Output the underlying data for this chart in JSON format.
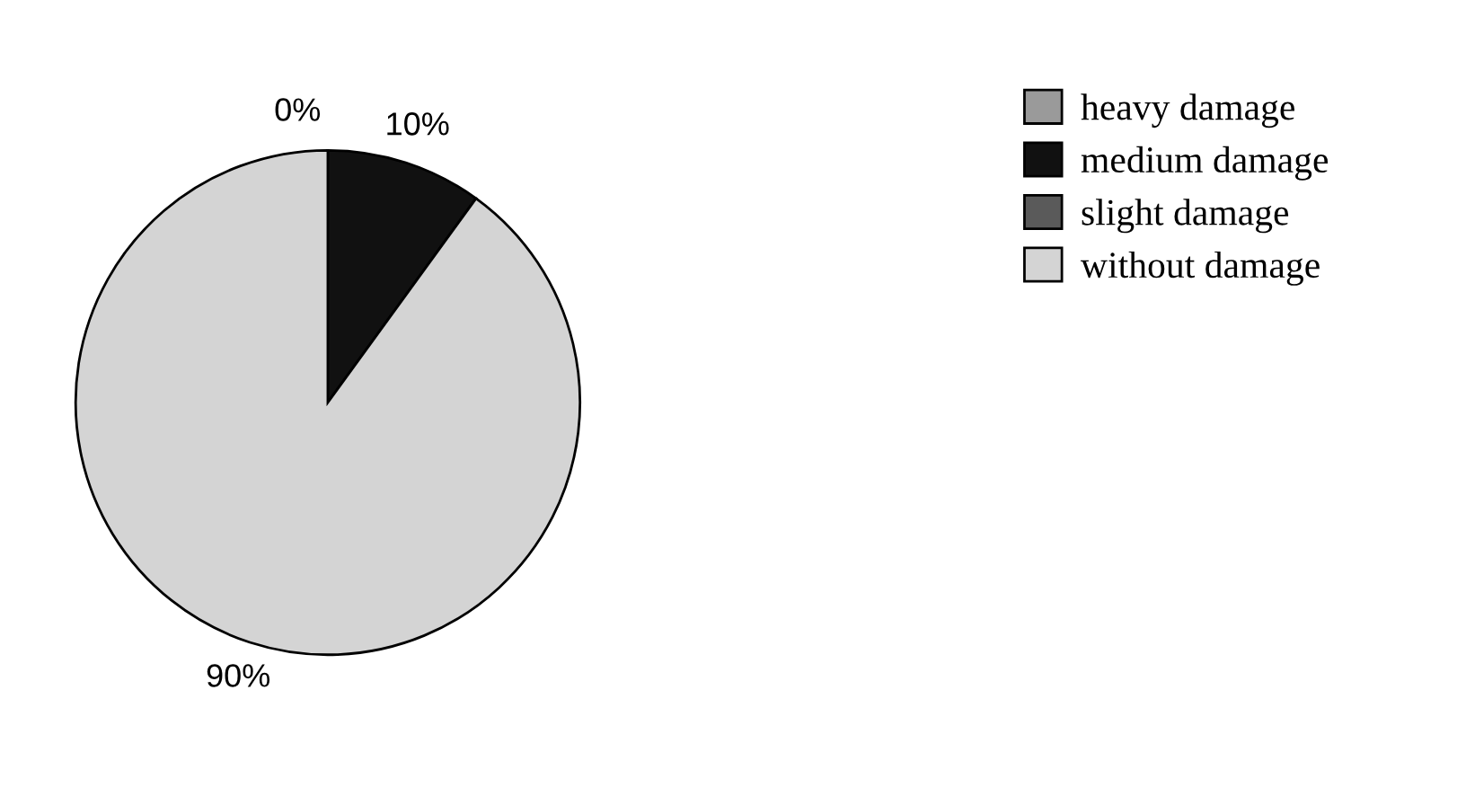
{
  "chart_data": {
    "type": "pie",
    "categories": [
      "heavy damage",
      "medium damage",
      "slight damage",
      "without damage"
    ],
    "values": [
      0,
      10,
      0,
      90
    ],
    "value_labels": [
      "0%",
      "10%",
      null,
      "90%"
    ],
    "colors": [
      "#9a9a9a",
      "#111111",
      "#5a5a5a",
      "#d4d4d4"
    ],
    "legend": "right"
  }
}
